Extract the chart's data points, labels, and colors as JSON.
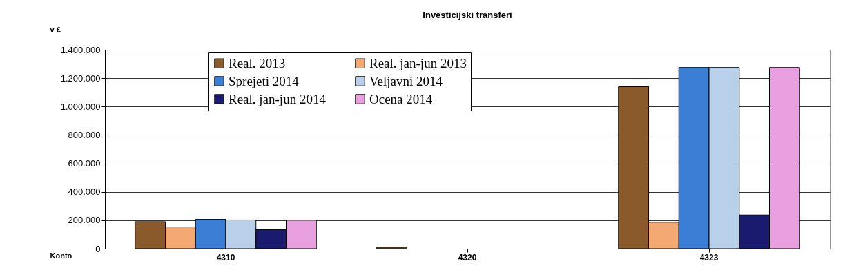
{
  "chart_data": {
    "type": "bar",
    "title": "Investicijski transferi",
    "ylabel": "v €",
    "xlabel": "Konto",
    "categories": [
      "4310",
      "4320",
      "4323"
    ],
    "series": [
      {
        "name": "Real. 2013",
        "color": "#8b5a2b",
        "values": [
          190000,
          10000,
          1140000
        ]
      },
      {
        "name": "Real. jan-jun 2013",
        "color": "#f4a872",
        "values": [
          153000,
          null,
          186000
        ]
      },
      {
        "name": "Sprejeti 2014",
        "color": "#3a7fd5",
        "values": [
          206000,
          null,
          1275000
        ]
      },
      {
        "name": "Veljavni 2014",
        "color": "#b8d0ea",
        "values": [
          202000,
          null,
          1275000
        ]
      },
      {
        "name": "Real. jan-jun 2014",
        "color": "#1a1a6e",
        "values": [
          134000,
          null,
          237000
        ]
      },
      {
        "name": "Ocena 2014",
        "color": "#e8a0e0",
        "values": [
          200000,
          null,
          1275000
        ]
      }
    ],
    "ylim": [
      0,
      1400000
    ],
    "yticks": [
      {
        "value": 0,
        "label": "0"
      },
      {
        "value": 200000,
        "label": "200.000"
      },
      {
        "value": 400000,
        "label": "400.000"
      },
      {
        "value": 600000,
        "label": "600.000"
      },
      {
        "value": 800000,
        "label": "800.000"
      },
      {
        "value": 1000000,
        "label": "1.000.000"
      },
      {
        "value": 1200000,
        "label": "1.200.000"
      },
      {
        "value": 1400000,
        "label": "1.400.000"
      }
    ],
    "grid": "y",
    "legend": "top left"
  }
}
